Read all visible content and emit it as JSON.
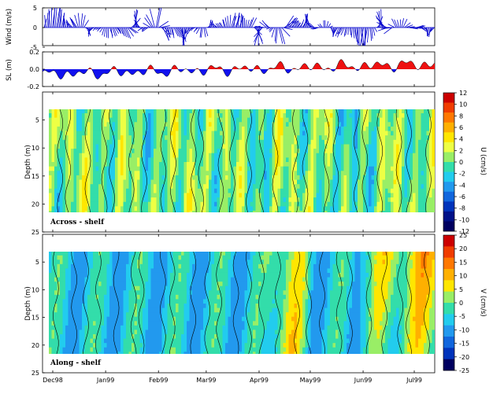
{
  "chart_data": [
    {
      "type": "vector-stick",
      "ylabel": "Wind (m/s)",
      "ylim": [
        -5,
        5
      ],
      "yticks": [
        -5,
        0,
        5
      ],
      "x_axis": "time (Dec98 - Jul99)"
    },
    {
      "type": "area",
      "ylabel": "SL (m)",
      "ylim": [
        -0.2,
        0.2
      ],
      "yticks": [
        "-0.2",
        "0.0",
        "0.2"
      ],
      "positive_color": "#ee1111",
      "negative_color": "#1111ee"
    },
    {
      "type": "heatmap",
      "ylabel": "Depth (m)",
      "ylim": [
        25,
        0
      ],
      "yticks": [
        5,
        10,
        15,
        20,
        25
      ],
      "panel_label": "Across - shelf",
      "colorbar_label": "U (cm/s)",
      "colorbar_ticks": [
        12,
        10,
        8,
        6,
        4,
        2,
        0,
        -2,
        -4,
        -6,
        -8,
        -10,
        -12
      ],
      "colorbar_colors": [
        "#cc0000",
        "#f03c00",
        "#ff7800",
        "#ffb000",
        "#ffe600",
        "#eeff44",
        "#99ee66",
        "#33ddaa",
        "#22ccee",
        "#2299ee",
        "#1166dd",
        "#0033bb",
        "#001188",
        "#000060"
      ]
    },
    {
      "type": "heatmap",
      "ylabel": "Depth (m)",
      "ylim": [
        25,
        0
      ],
      "yticks": [
        5,
        10,
        15,
        20,
        25
      ],
      "panel_label": "Along - shelf",
      "colorbar_label": "V (cm/s)",
      "colorbar_ticks": [
        25,
        20,
        15,
        10,
        5,
        0,
        -5,
        -10,
        -15,
        -20,
        -25
      ],
      "colorbar_colors": [
        "#cc0000",
        "#f03c00",
        "#ff7800",
        "#ffb000",
        "#ffe600",
        "#99ee66",
        "#33ddaa",
        "#22ccee",
        "#2299ee",
        "#1166dd",
        "#0033bb",
        "#000060"
      ]
    }
  ],
  "x_ticks": [
    "Dec98",
    "Jan99",
    "Feb99",
    "Mar99",
    "Apr99",
    "May99",
    "Jun99",
    "Jul99"
  ]
}
